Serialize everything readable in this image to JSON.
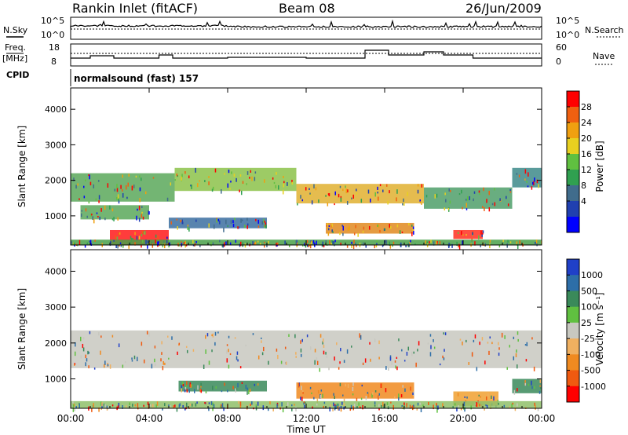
{
  "header": {
    "station": "Rankin Inlet (fitACF)",
    "beam": "Beam 08",
    "date": "26/Jun/2009",
    "program": "normalsound (fast) 157"
  },
  "left_labels": {
    "nsky": "N.Sky",
    "freq": "Freq.",
    "mhz": "[MHz]",
    "cpid": "CPID"
  },
  "right_labels": {
    "nsearch": "N.Search",
    "nave": "Nave"
  },
  "noise_panel": {
    "ticks_left": [
      "10^5",
      "10^0"
    ],
    "ticks_right": [
      "10^5",
      "10^0"
    ]
  },
  "freq_panel": {
    "ticks_left": [
      "18",
      "8"
    ],
    "ticks_right": [
      "60",
      "0"
    ]
  },
  "chart_data": [
    {
      "type": "heatmap",
      "quantity": "Power",
      "ylabel": "Slant Range [km]",
      "xlabel": "Time UT",
      "x_ticks": [
        "00:00",
        "04:00",
        "08:00",
        "12:00",
        "16:00",
        "20:00",
        "00:00"
      ],
      "x_range_hours": [
        0,
        24
      ],
      "ylim": [
        180,
        4600
      ],
      "y_ticks": [
        1000,
        2000,
        3000,
        4000
      ],
      "colorbar": {
        "label": "Power [dB]",
        "ticks": [
          "28",
          "24",
          "20",
          "16",
          "12",
          "8",
          "4"
        ],
        "colors": [
          "#ff0000",
          "#f06010",
          "#f0a010",
          "#e8d020",
          "#60c040",
          "#30a050",
          "#406c8c",
          "#2040b0",
          "#0000ff"
        ]
      },
      "echo_bands": [
        {
          "t0": 0.0,
          "t1": 5.3,
          "r0": 1400,
          "r1": 2200,
          "color": "#5aa85a"
        },
        {
          "t0": 5.3,
          "t1": 11.5,
          "r0": 1700,
          "r1": 2350,
          "color": "#8cc24a"
        },
        {
          "t0": 11.5,
          "t1": 18.0,
          "r0": 1350,
          "r1": 1900,
          "color": "#e0b030"
        },
        {
          "t0": 18.0,
          "t1": 22.5,
          "r0": 1200,
          "r1": 1800,
          "color": "#4f9f6a"
        },
        {
          "t0": 22.5,
          "t1": 24.0,
          "r0": 1800,
          "r1": 2350,
          "color": "#3d8a8a"
        },
        {
          "t0": 0.5,
          "t1": 4.0,
          "r0": 900,
          "r1": 1300,
          "color": "#5aa85a"
        },
        {
          "t0": 5.0,
          "t1": 10.0,
          "r0": 650,
          "r1": 950,
          "color": "#3b6ea0"
        },
        {
          "t0": 13.0,
          "t1": 17.5,
          "r0": 500,
          "r1": 800,
          "color": "#e08a20"
        },
        {
          "t0": 2.0,
          "t1": 5.0,
          "r0": 180,
          "r1": 600,
          "color": "#ff1a1a"
        },
        {
          "t0": 19.5,
          "t1": 21.0,
          "r0": 350,
          "r1": 600,
          "color": "#ff3020"
        },
        {
          "t0": 0.0,
          "t1": 24.0,
          "r0": 180,
          "r1": 330,
          "color": "#49a049"
        }
      ]
    },
    {
      "type": "heatmap",
      "quantity": "Velocity",
      "ylabel": "Slant Range [km]",
      "xlabel": "Time UT",
      "x_ticks": [
        "00:00",
        "04:00",
        "08:00",
        "12:00",
        "16:00",
        "20:00",
        "00:00"
      ],
      "x_range_hours": [
        0,
        24
      ],
      "ylim": [
        180,
        4600
      ],
      "y_ticks": [
        1000,
        2000,
        3000,
        4000
      ],
      "colorbar": {
        "label": "Velocity [m s⁻¹]",
        "ticks": [
          "1000",
          "500",
          "100",
          "25",
          "-25",
          "-100",
          "-500",
          "-1000"
        ],
        "colors": [
          "#2040c8",
          "#2d6ea8",
          "#3a8a5a",
          "#60c040",
          "#c8c8c0",
          "#f0b060",
          "#f08a20",
          "#f05a10",
          "#ff0000"
        ]
      },
      "echo_bands": [
        {
          "t0": 0.0,
          "t1": 24.0,
          "r0": 1300,
          "r1": 2350,
          "color": "#c8c8c0"
        },
        {
          "t0": 5.5,
          "t1": 10.0,
          "r0": 650,
          "r1": 950,
          "color": "#3a8a5a"
        },
        {
          "t0": 11.5,
          "t1": 17.5,
          "r0": 450,
          "r1": 900,
          "color": "#f08a20"
        },
        {
          "t0": 19.5,
          "t1": 21.8,
          "r0": 250,
          "r1": 650,
          "color": "#f0a030"
        },
        {
          "t0": 22.5,
          "t1": 24.0,
          "r0": 600,
          "r1": 1000,
          "color": "#3a8a5a"
        },
        {
          "t0": 0.0,
          "t1": 24.0,
          "r0": 180,
          "r1": 380,
          "color": "#8fbf6a"
        }
      ]
    }
  ]
}
